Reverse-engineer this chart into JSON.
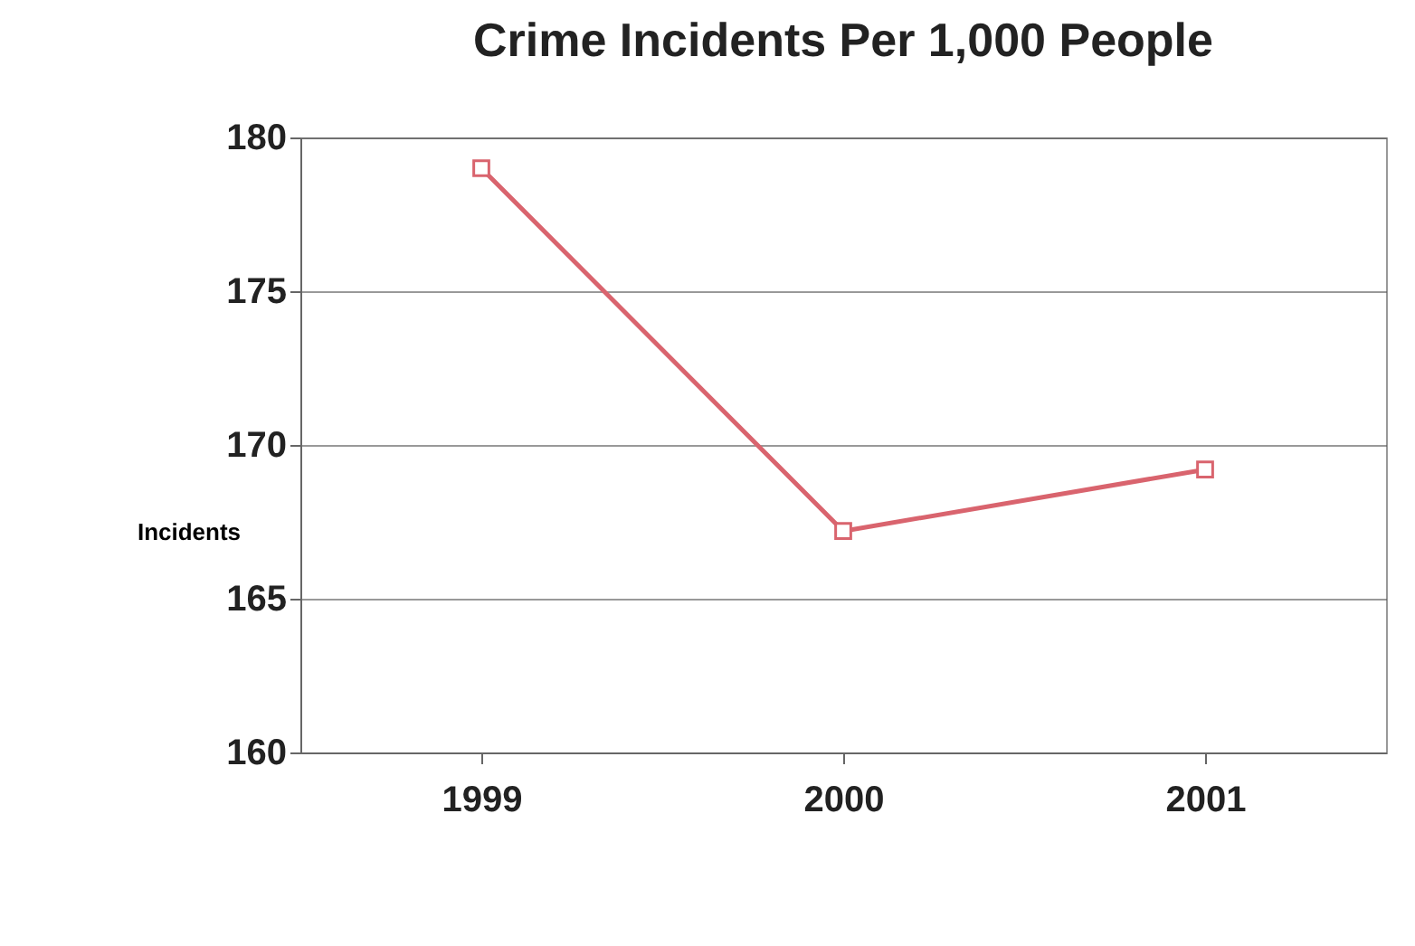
{
  "chart_data": {
    "type": "line",
    "title": "Crime Incidents Per 1,000 People",
    "ylabel": "Incidents",
    "categories": [
      "1999",
      "2000",
      "2001"
    ],
    "series": [
      {
        "color": "#d9646e",
        "values": [
          179,
          167.2,
          169.2
        ]
      }
    ],
    "ylim": [
      160,
      180
    ],
    "yticks": [
      160,
      165,
      170,
      175,
      180
    ],
    "grid": "y",
    "marker": "square"
  }
}
